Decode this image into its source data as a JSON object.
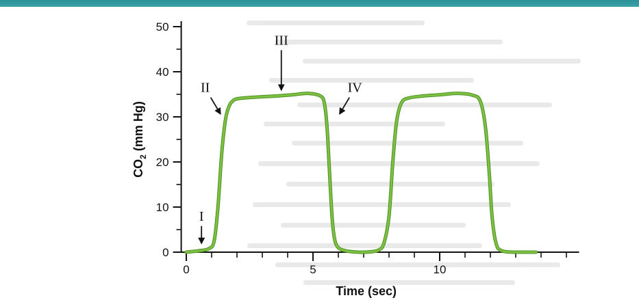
{
  "colors": {
    "curve": "#7dc142",
    "curve_edge": "#4f8f24",
    "axis": "#111111",
    "band": "#2b9097"
  },
  "chart_data": {
    "type": "line",
    "title": "",
    "xlabel": "Time (sec)",
    "ylabel_parts": {
      "main": "CO",
      "sub": "2",
      "rest": " (mm Hg)"
    },
    "xlim": [
      -0.2,
      15.5
    ],
    "ylim": [
      0,
      50
    ],
    "xticks": [
      0,
      5,
      10
    ],
    "xtick_minor": [
      1,
      2,
      3,
      4,
      6,
      7,
      8,
      9,
      11,
      12,
      13,
      14,
      15
    ],
    "yticks": [
      0,
      10,
      20,
      30,
      40,
      50
    ],
    "ytick_minor": [
      5,
      15,
      25,
      35,
      45
    ],
    "ytick_labels": [
      "0",
      "10",
      "20",
      "30",
      "40",
      "50"
    ],
    "xtick_labels": [
      "0",
      "5",
      "10"
    ],
    "grid": false,
    "series": [
      {
        "x": [
          0.0,
          0.5,
          0.9,
          1.1,
          1.25,
          1.4,
          1.55,
          1.7,
          1.85,
          2.0,
          2.3,
          2.8,
          3.5,
          4.2,
          4.8,
          5.3,
          5.45,
          5.55,
          5.65,
          5.75,
          5.85,
          6.0,
          6.3,
          6.8,
          7.3,
          7.6,
          7.8,
          8.0,
          8.15,
          8.3,
          8.5,
          8.8,
          9.3,
          10.0,
          10.7,
          11.3,
          11.6,
          11.8,
          11.95,
          12.05,
          12.15,
          12.25,
          12.35,
          12.6,
          13.0,
          13.8
        ],
        "y": [
          0.0,
          0.3,
          0.8,
          2.5,
          10.0,
          22.0,
          29.5,
          32.5,
          33.6,
          34.0,
          34.2,
          34.4,
          34.6,
          34.9,
          35.2,
          34.6,
          33.0,
          28.0,
          18.0,
          8.0,
          3.0,
          1.0,
          0.3,
          0.0,
          0.1,
          0.5,
          2.0,
          8.0,
          20.0,
          29.0,
          33.2,
          34.2,
          34.6,
          34.9,
          35.2,
          34.8,
          33.5,
          28.0,
          18.0,
          9.0,
          4.0,
          1.5,
          0.6,
          0.1,
          0.0,
          0.0
        ]
      }
    ],
    "annotations": [
      {
        "text": "I",
        "x": 0.6,
        "y": 0.8,
        "label_y": 7,
        "arrow": "down"
      },
      {
        "text": "II",
        "x": 1.45,
        "y": 29.5,
        "label_y": 35.5,
        "arrow": "diag-down-right"
      },
      {
        "text": "III",
        "x": 3.75,
        "y": 34.8,
        "label_y": 46,
        "arrow": "down"
      },
      {
        "text": "IV",
        "x": 5.95,
        "y": 29.5,
        "label_y": 35.5,
        "arrow": "diag-down-left"
      }
    ]
  }
}
